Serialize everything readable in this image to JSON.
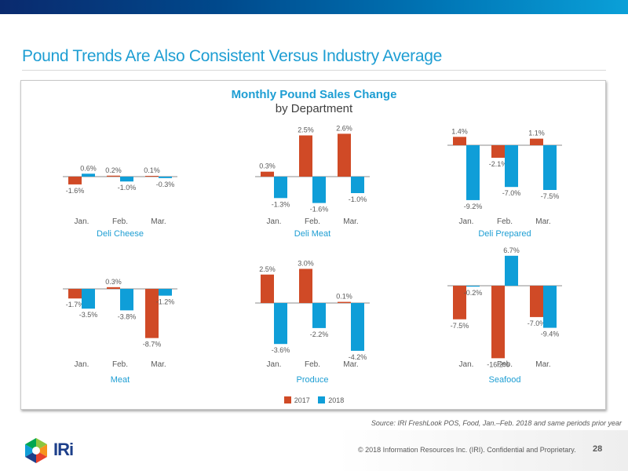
{
  "header": {
    "title": "Pound Trends Are Also Consistent Versus Industry Average"
  },
  "chart_data": {
    "type": "bar",
    "title": "Monthly Pound Sales Change",
    "subtitle": "by Department",
    "categories": [
      "Jan.",
      "Feb.",
      "Mar."
    ],
    "legend": [
      {
        "name": "2017",
        "color": "#d04a26"
      },
      {
        "name": "2018",
        "color": "#0f9ed8"
      }
    ],
    "legend_position": "bottom",
    "panels": [
      {
        "department": "Deli Cheese",
        "series": [
          {
            "name": "2017",
            "values": [
              -1.6,
              0.2,
              0.1
            ]
          },
          {
            "name": "2018",
            "values": [
              0.6,
              -1.0,
              -0.3
            ]
          }
        ]
      },
      {
        "department": "Deli Meat",
        "series": [
          {
            "name": "2017",
            "values": [
              0.3,
              2.5,
              2.6
            ]
          },
          {
            "name": "2018",
            "values": [
              -1.3,
              -1.6,
              -1.0
            ]
          }
        ]
      },
      {
        "department": "Deli Prepared",
        "series": [
          {
            "name": "2017",
            "values": [
              1.4,
              -2.1,
              1.1
            ]
          },
          {
            "name": "2018",
            "values": [
              -9.2,
              -7.0,
              -7.5
            ]
          }
        ]
      },
      {
        "department": "Meat",
        "series": [
          {
            "name": "2017",
            "values": [
              -1.7,
              0.3,
              -8.7
            ]
          },
          {
            "name": "2018",
            "values": [
              -3.5,
              -3.8,
              -1.2
            ]
          }
        ]
      },
      {
        "department": "Produce",
        "series": [
          {
            "name": "2017",
            "values": [
              2.5,
              3.0,
              0.1
            ]
          },
          {
            "name": "2018",
            "values": [
              -3.6,
              -2.2,
              -4.2
            ]
          }
        ]
      },
      {
        "department": "Seafood",
        "series": [
          {
            "name": "2017",
            "values": [
              -7.5,
              -16.2,
              -7.0
            ]
          },
          {
            "name": "2018",
            "values": [
              -0.2,
              6.7,
              -9.4
            ]
          }
        ]
      }
    ]
  },
  "footer": {
    "source": "Source: IRI FreshLook POS, Food, Jan.–Feb. 2018 and same periods prior year",
    "copyright": "© 2018 Information Resources Inc. (IRI). Confidential and Proprietary.",
    "page_number": "28",
    "logo_text": "IRi"
  }
}
